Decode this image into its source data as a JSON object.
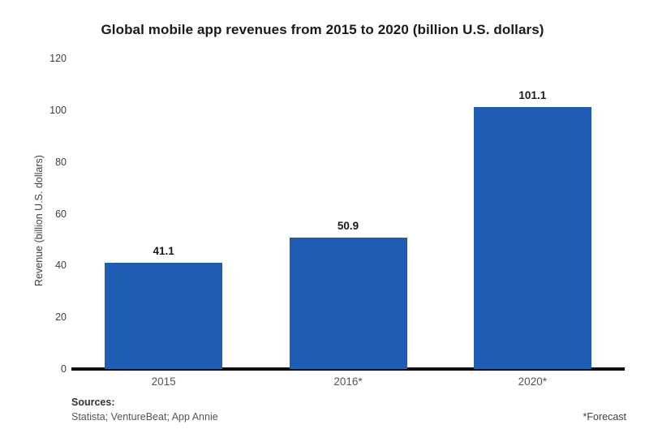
{
  "title": "Global mobile app revenues from 2015 to 2020 (billion U.S. dollars)",
  "chart_data": {
    "type": "bar",
    "categories": [
      "2015",
      "2016*",
      "2020*"
    ],
    "values": [
      41.1,
      50.9,
      101.1
    ],
    "value_labels": [
      "41.1",
      "50.9",
      "101.1"
    ],
    "title": "Global mobile app revenues from 2015 to 2020 (billion U.S. dollars)",
    "xlabel": "",
    "ylabel": "Revenue (billion U.S. dollars)",
    "ylim": [
      0,
      120
    ],
    "yticks": [
      0,
      20,
      40,
      60,
      80,
      100,
      120
    ],
    "grid": false,
    "legend": false,
    "bar_color": "#1f5cb4",
    "axis_line_color": "#0d0d0d"
  },
  "footer": {
    "sources_label": "Sources:",
    "sources_text": "Statista; VentureBeat; App Annie",
    "forecast_note": "*Forecast"
  }
}
